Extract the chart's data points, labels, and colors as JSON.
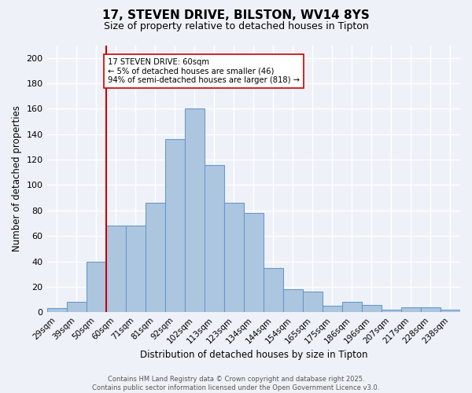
{
  "title": "17, STEVEN DRIVE, BILSTON, WV14 8YS",
  "subtitle": "Size of property relative to detached houses in Tipton",
  "xlabel": "Distribution of detached houses by size in Tipton",
  "ylabel": "Number of detached properties",
  "categories": [
    "29sqm",
    "39sqm",
    "50sqm",
    "60sqm",
    "71sqm",
    "81sqm",
    "92sqm",
    "102sqm",
    "113sqm",
    "123sqm",
    "134sqm",
    "144sqm",
    "154sqm",
    "165sqm",
    "175sqm",
    "186sqm",
    "196sqm",
    "207sqm",
    "217sqm",
    "228sqm",
    "238sqm"
  ],
  "values": [
    3,
    8,
    40,
    68,
    68,
    86,
    136,
    160,
    116,
    86,
    78,
    35,
    18,
    16,
    5,
    8,
    6,
    2,
    4,
    4,
    2
  ],
  "bar_color": "#adc6e0",
  "bar_edge_color": "#6699cc",
  "property_line_index": 3,
  "property_line_color": "#cc0000",
  "annotation_text": "17 STEVEN DRIVE: 60sqm\n← 5% of detached houses are smaller (46)\n94% of semi-detached houses are larger (818) →",
  "annotation_box_color": "#ffffff",
  "annotation_box_edge_color": "#cc0000",
  "footer_text": "Contains HM Land Registry data © Crown copyright and database right 2025.\nContains public sector information licensed under the Open Government Licence v3.0.",
  "ylim": [
    0,
    210
  ],
  "yticks": [
    0,
    20,
    40,
    60,
    80,
    100,
    120,
    140,
    160,
    180,
    200
  ],
  "background_color": "#eef2f8",
  "grid_color": "#ffffff"
}
